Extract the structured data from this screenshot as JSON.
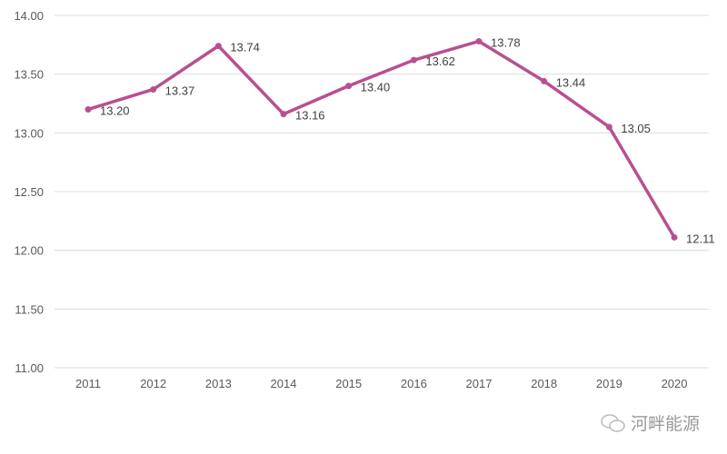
{
  "chart_data": {
    "type": "line",
    "categories": [
      "2011",
      "2012",
      "2013",
      "2014",
      "2015",
      "2016",
      "2017",
      "2018",
      "2019",
      "2020"
    ],
    "series": [
      {
        "values": [
          13.2,
          13.37,
          13.74,
          13.16,
          13.4,
          13.62,
          13.78,
          13.44,
          13.05,
          12.11
        ]
      }
    ],
    "data_labels": [
      "13.20",
      "13.37",
      "13.74",
      "13.16",
      "13.40",
      "13.62",
      "13.78",
      "13.44",
      "13.05",
      "12.11"
    ],
    "yticks": [
      "14.00",
      "13.50",
      "13.00",
      "12.50",
      "12.00",
      "11.50",
      "11.00"
    ],
    "ylim": [
      11,
      14
    ],
    "grid": true,
    "legend": "none",
    "line_color": "#b8508f"
  },
  "watermark": {
    "text": "河畔能源",
    "icon": "wechat-icon"
  }
}
